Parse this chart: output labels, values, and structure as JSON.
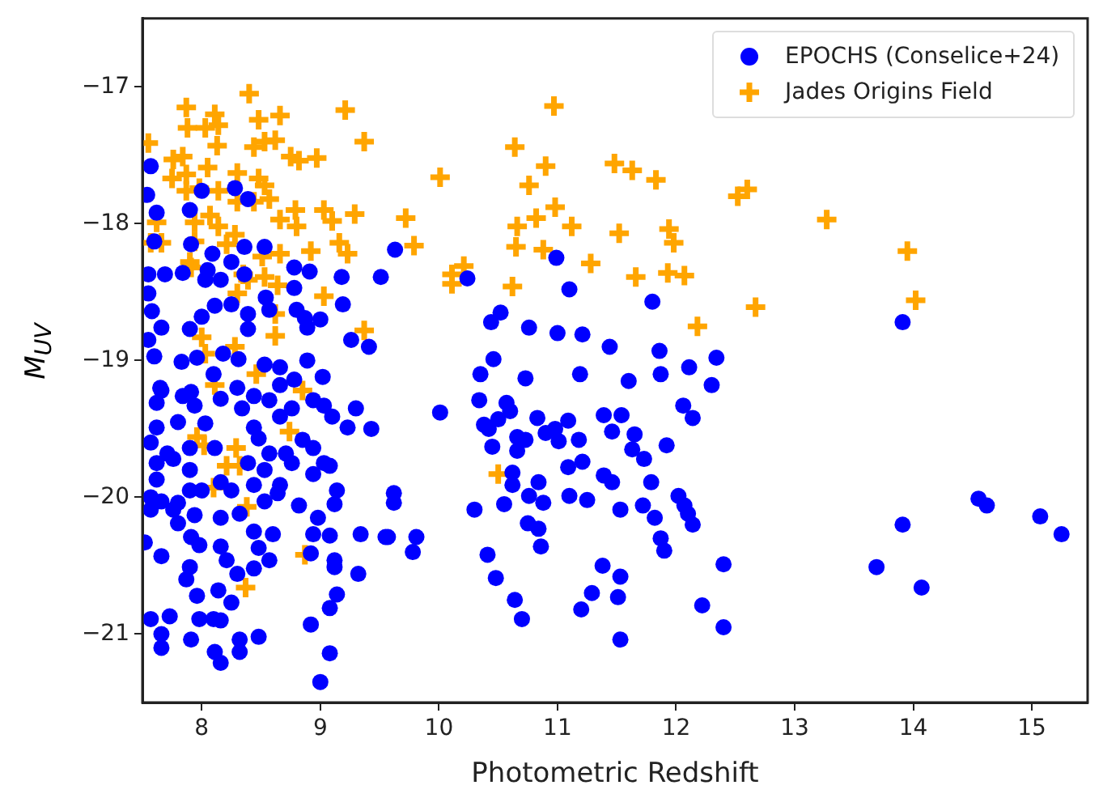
{
  "chart_data": {
    "type": "scatter",
    "xlabel": "Photometric Redshift",
    "ylabel": "M$_{UV}$",
    "xlim": [
      7.5,
      15.47
    ],
    "ylim": [
      -21.5,
      -16.5
    ],
    "xticks": [
      8,
      9,
      10,
      11,
      12,
      13,
      14,
      15
    ],
    "yticks": [
      -21,
      -20,
      -19,
      -18,
      -17
    ],
    "grid": false,
    "legend": "top right",
    "series": [
      {
        "name": "EPOCHS (Conselice+24)",
        "color": "#0000ff",
        "marker": "circle",
        "x": [
          13.91,
          14.55,
          14.62,
          15.07,
          15.25,
          13.91,
          13.69,
          14.07,
          9.63,
          10.24,
          10.99,
          11.1,
          11.8,
          10.52,
          10.44,
          10.76,
          11.0,
          11.21,
          11.44,
          11.86,
          12.34,
          10.46,
          10.35,
          10.73,
          11.19,
          11.6,
          11.87,
          12.11,
          12.3,
          10.01,
          10.34,
          10.57,
          10.6,
          10.5,
          10.38,
          12.06,
          12.14,
          10.83,
          11.09,
          11.39,
          11.54,
          11.46,
          11.65,
          10.42,
          10.66,
          10.73,
          10.9,
          10.98,
          11.01,
          10.45,
          10.66,
          11.18,
          11.63,
          11.92,
          11.73,
          11.09,
          11.21,
          11.39,
          11.46,
          11.79,
          10.62,
          10.62,
          10.84,
          10.76,
          10.88,
          10.55,
          10.3,
          11.1,
          11.25,
          11.53,
          11.72,
          11.82,
          12.02,
          12.07,
          12.1,
          12.14,
          10.75,
          10.84,
          11.87,
          11.9,
          10.86,
          10.41,
          10.48,
          11.38,
          11.53,
          11.29,
          11.51,
          11.2,
          10.64,
          10.7,
          11.53,
          12.22,
          12.4,
          12.4,
          9.62,
          9.62,
          9.81,
          9.78,
          9.57,
          7.57,
          7.54,
          7.62,
          8.28,
          8.39,
          8.0,
          7.9,
          7.6,
          7.91,
          8.09,
          8.36,
          8.53,
          8.25,
          8.05,
          7.84,
          7.69,
          7.55,
          8.03,
          8.16,
          8.36,
          8.78,
          8.91,
          8.78,
          9.18,
          9.51,
          8.54,
          7.55,
          7.58,
          8.11,
          8.0,
          8.25,
          8.39,
          8.57,
          8.8,
          8.87,
          9.0,
          9.19,
          7.66,
          7.9,
          8.39,
          8.89,
          9.26,
          9.41,
          7.55,
          7.83,
          7.96,
          8.18,
          8.31,
          8.53,
          8.66,
          8.89,
          9.02,
          7.6,
          7.66,
          7.91,
          8.1,
          8.3,
          8.44,
          8.66,
          8.78,
          9.3,
          8.76,
          7.65,
          7.62,
          7.84,
          7.94,
          8.16,
          8.34,
          8.57,
          8.66,
          8.94,
          9.03,
          9.1,
          9.23,
          9.43,
          7.62,
          7.8,
          8.03,
          8.44,
          7.57,
          7.71,
          7.9,
          8.11,
          8.48,
          8.57,
          8.71,
          8.85,
          8.94,
          9.03,
          7.62,
          7.76,
          7.9,
          8.39,
          8.53,
          8.76,
          8.94,
          9.08,
          7.62,
          8.16,
          8.44,
          8.66,
          7.57,
          7.66,
          7.8,
          7.9,
          8.0,
          8.25,
          8.53,
          8.64,
          8.82,
          9.14,
          9.12,
          7.57,
          7.76,
          7.94,
          8.16,
          8.32,
          7.8,
          8.98,
          7.91,
          7.98,
          8.16,
          8.44,
          8.48,
          8.6,
          8.94,
          9.08,
          9.34,
          9.55,
          7.52,
          7.66,
          8.21,
          8.57,
          8.92,
          9.12,
          7.9,
          8.3,
          8.44,
          9.12,
          7.87,
          9.32,
          7.96,
          8.14,
          8.25,
          9.14,
          9.08,
          7.57,
          7.73,
          7.98,
          8.1,
          8.16,
          7.66,
          7.66,
          7.91,
          8.32,
          8.48,
          8.11,
          8.16,
          8.32,
          8.92,
          9.08,
          9.0
        ],
        "values": [
          -18.72,
          -20.01,
          -20.06,
          -20.14,
          -20.27,
          -20.2,
          -20.51,
          -20.66,
          -18.19,
          -18.4,
          -18.25,
          -18.48,
          -18.57,
          -18.65,
          -18.72,
          -18.76,
          -18.8,
          -18.81,
          -18.9,
          -18.93,
          -18.98,
          -18.99,
          -19.1,
          -19.13,
          -19.1,
          -19.15,
          -19.1,
          -19.05,
          -19.18,
          -19.38,
          -19.29,
          -19.31,
          -19.37,
          -19.43,
          -19.47,
          -19.33,
          -19.42,
          -19.42,
          -19.44,
          -19.4,
          -19.4,
          -19.52,
          -19.54,
          -19.5,
          -19.56,
          -19.58,
          -19.53,
          -19.5,
          -19.59,
          -19.63,
          -19.66,
          -19.58,
          -19.65,
          -19.62,
          -19.72,
          -19.78,
          -19.74,
          -19.84,
          -19.89,
          -19.89,
          -19.82,
          -19.91,
          -19.89,
          -19.99,
          -20.04,
          -20.05,
          -20.09,
          -19.99,
          -20.02,
          -20.09,
          -20.06,
          -20.15,
          -19.99,
          -20.06,
          -20.12,
          -20.2,
          -20.19,
          -20.23,
          -20.3,
          -20.39,
          -20.36,
          -20.42,
          -20.59,
          -20.5,
          -20.58,
          -20.7,
          -20.73,
          -20.82,
          -20.75,
          -20.89,
          -21.04,
          -20.79,
          -20.49,
          -20.95,
          -19.97,
          -20.04,
          -20.29,
          -20.4,
          -20.29,
          -17.58,
          -17.79,
          -17.92,
          -17.74,
          -17.82,
          -17.76,
          -17.9,
          -18.13,
          -18.15,
          -18.22,
          -18.17,
          -18.17,
          -18.28,
          -18.34,
          -18.36,
          -18.37,
          -18.37,
          -18.41,
          -18.41,
          -18.37,
          -18.32,
          -18.35,
          -18.47,
          -18.39,
          -18.39,
          -18.54,
          -18.51,
          -18.64,
          -18.6,
          -18.68,
          -18.59,
          -18.66,
          -18.63,
          -18.63,
          -18.69,
          -18.7,
          -18.59,
          -18.76,
          -18.77,
          -18.77,
          -18.76,
          -18.85,
          -18.9,
          -18.85,
          -19.01,
          -18.98,
          -18.95,
          -18.99,
          -19.03,
          -19.05,
          -19.0,
          -19.12,
          -18.97,
          -19.22,
          -19.23,
          -19.1,
          -19.2,
          -19.26,
          -19.18,
          -19.14,
          -19.35,
          -19.35,
          -19.2,
          -19.31,
          -19.26,
          -19.33,
          -19.28,
          -19.35,
          -19.29,
          -19.41,
          -19.29,
          -19.33,
          -19.41,
          -19.49,
          -19.5,
          -19.49,
          -19.45,
          -19.46,
          -19.49,
          -19.6,
          -19.68,
          -19.64,
          -19.64,
          -19.57,
          -19.68,
          -19.68,
          -19.58,
          -19.64,
          -19.75,
          -19.75,
          -19.72,
          -19.8,
          -19.75,
          -19.8,
          -19.75,
          -19.83,
          -19.77,
          -19.87,
          -19.89,
          -19.91,
          -19.91,
          -20.0,
          -20.03,
          -20.04,
          -19.95,
          -19.95,
          -19.95,
          -20.03,
          -19.97,
          -20.06,
          -19.95,
          -20.05,
          -20.09,
          -20.09,
          -20.13,
          -20.15,
          -20.12,
          -20.19,
          -20.15,
          -20.29,
          -20.35,
          -20.36,
          -20.25,
          -20.37,
          -20.27,
          -20.27,
          -20.28,
          -20.27,
          -20.29,
          -20.33,
          -20.43,
          -20.46,
          -20.46,
          -20.41,
          -20.46,
          -20.51,
          -20.56,
          -20.52,
          -20.51,
          -20.6,
          -20.56,
          -20.72,
          -20.68,
          -20.77,
          -20.71,
          -20.81,
          -20.89,
          -20.87,
          -20.89,
          -20.89,
          -20.9,
          -21.0,
          -21.1,
          -21.04,
          -21.04,
          -21.02,
          -21.13,
          -21.21,
          -21.13,
          -20.93,
          -21.14,
          -21.35
        ]
      },
      {
        "name": "Jades Origins Field",
        "color": "#ffa500",
        "marker": "cross",
        "x": [
          7.87,
          8.4,
          8.11,
          8.48,
          8.66,
          7.88,
          8.03,
          8.14,
          8.13,
          8.44,
          8.53,
          8.62,
          9.21,
          9.37,
          7.55,
          7.76,
          7.84,
          8.05,
          8.75,
          8.82,
          8.97,
          7.75,
          7.87,
          8.3,
          8.48,
          8.53,
          7.87,
          7.98,
          8.14,
          8.3,
          8.44,
          8.57,
          8.79,
          9.03,
          9.29,
          9.72,
          7.62,
          7.94,
          8.07,
          8.14,
          8.66,
          8.8,
          9.1,
          7.57,
          7.66,
          7.94,
          8.21,
          8.28,
          8.92,
          9.16,
          9.23,
          9.79,
          8.51,
          8.66,
          7.9,
          7.91,
          8.35,
          8.39,
          8.53,
          8.64,
          8.3,
          9.03,
          8.62,
          9.37,
          8.62,
          8.0,
          8.03,
          8.28,
          8.11,
          8.46,
          8.85,
          7.96,
          8.02,
          8.29,
          8.74,
          8.21,
          8.32,
          8.1,
          8.38,
          8.87,
          8.37,
          10.97,
          10.64,
          10.9,
          10.76,
          10.01,
          10.98,
          10.82,
          10.66,
          11.12,
          10.65,
          10.88,
          10.21,
          10.11,
          10.11,
          10.62,
          11.28,
          11.48,
          11.63,
          11.83,
          11.52,
          11.94,
          11.98,
          11.66,
          11.93,
          12.07,
          12.18,
          12.52,
          12.6,
          10.5,
          12.67,
          13.27,
          13.95,
          14.02
        ],
        "values": [
          -17.15,
          -17.05,
          -17.2,
          -17.24,
          -17.21,
          -17.3,
          -17.3,
          -17.28,
          -17.43,
          -17.44,
          -17.4,
          -17.39,
          -17.17,
          -17.4,
          -17.41,
          -17.53,
          -17.51,
          -17.59,
          -17.51,
          -17.54,
          -17.52,
          -17.67,
          -17.64,
          -17.63,
          -17.67,
          -17.72,
          -17.76,
          -17.74,
          -17.76,
          -17.84,
          -17.84,
          -17.82,
          -17.9,
          -17.9,
          -17.93,
          -17.96,
          -17.99,
          -17.99,
          -17.94,
          -18.02,
          -17.97,
          -18.02,
          -17.98,
          -18.14,
          -18.14,
          -18.13,
          -18.15,
          -18.08,
          -18.2,
          -18.14,
          -18.22,
          -18.16,
          -18.24,
          -18.22,
          -18.28,
          -18.32,
          -18.37,
          -18.41,
          -18.39,
          -18.45,
          -18.51,
          -18.53,
          -18.66,
          -18.78,
          -18.82,
          -18.83,
          -18.95,
          -18.9,
          -19.18,
          -19.1,
          -19.22,
          -19.56,
          -19.62,
          -19.64,
          -19.52,
          -19.77,
          -19.77,
          -19.93,
          -20.07,
          -20.42,
          -20.66,
          -17.14,
          -17.44,
          -17.58,
          -17.72,
          -17.66,
          -17.88,
          -17.96,
          -18.02,
          -18.02,
          -18.17,
          -18.19,
          -18.31,
          -18.37,
          -18.44,
          -18.46,
          -18.29,
          -17.56,
          -17.61,
          -17.68,
          -18.07,
          -18.04,
          -18.14,
          -18.39,
          -18.36,
          -18.38,
          -18.75,
          -17.8,
          -17.75,
          -19.83,
          -18.61,
          -17.97,
          -18.2,
          -18.56
        ]
      }
    ]
  }
}
